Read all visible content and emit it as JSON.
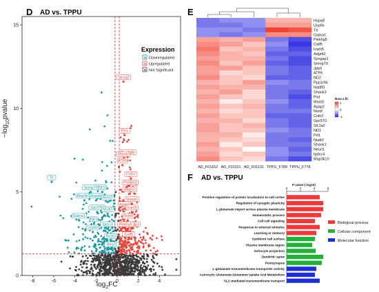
{
  "chart_data": [
    {
      "panel": "D",
      "title": "AD vs. TPPU",
      "type": "scatter",
      "xlabel": "log2FC",
      "xlabel_parts": [
        "log",
        "2",
        "FC"
      ],
      "ylabel": "−log10pvalue",
      "ylabel_parts": [
        "−log",
        "10",
        "pvalue"
      ],
      "xlim": [
        -9,
        6
      ],
      "ylim": [
        0,
        15.5
      ],
      "xticks": [
        -8,
        -6,
        -4,
        -2,
        0,
        2,
        4
      ],
      "yticks": [
        0,
        5,
        10,
        15
      ],
      "thresholds": {
        "log2fc": [
          -0.2,
          0.2
        ],
        "neg_log10_p": 1.3
      },
      "legend": {
        "title": "Expression",
        "entries": [
          {
            "label": "Downregulated",
            "color": "#1f9aa0"
          },
          {
            "label": "Upregulated",
            "color": "#e8463c"
          },
          {
            "label": "Not Significant",
            "color": "#3a3a3a"
          }
        ]
      },
      "labeled_genes": {
        "up": [
          {
            "name": "Slc1a2",
            "x": 0.6,
            "y": 11.6
          },
          {
            "name": "Prt1",
            "x": 0.7,
            "y": 8.4
          },
          {
            "name": "Ppp1r9b",
            "x": 1.0,
            "y": 7.1
          },
          {
            "name": "Shank3",
            "x": 0.6,
            "y": 7.0
          },
          {
            "name": "ATP6",
            "x": 0.5,
            "y": 6.6
          },
          {
            "name": "Jph3",
            "x": 1.5,
            "y": 5.3
          },
          {
            "name": "Cnih2",
            "x": 1.3,
            "y": 5.8
          },
          {
            "name": "Adgrb2",
            "x": 1.2,
            "y": 4.9
          },
          {
            "name": "Psd",
            "x": 0.9,
            "y": 5.3
          },
          {
            "name": "Shank1",
            "x": 1.4,
            "y": 4.3
          },
          {
            "name": "Agap2",
            "x": 0.7,
            "y": 4.0
          },
          {
            "name": "Icam5",
            "x": 1.4,
            "y": 3.8
          },
          {
            "name": "Nsmf",
            "x": 1.0,
            "y": 3.3
          },
          {
            "name": "Syngap1",
            "x": 1.4,
            "y": 2.8
          },
          {
            "name": "Plekhg5",
            "x": 0.8,
            "y": 2.8
          },
          {
            "name": "Celf5",
            "x": 1.1,
            "y": 2.2
          }
        ],
        "down": [
          {
            "name": "Ttr",
            "x": -6.2,
            "y": 5.6
          },
          {
            "name": "Snrnp70",
            "x": -2.5,
            "y": 5.0
          },
          {
            "name": "ND2",
            "x": -1.4,
            "y": 5.0
          },
          {
            "name": "Map3k10",
            "x": -3.1,
            "y": 4.5
          },
          {
            "name": "Hspa8",
            "x": -2.0,
            "y": 4.5
          },
          {
            "name": "Mast3",
            "x": -0.9,
            "y": 4.4
          },
          {
            "name": "Gpr37l1",
            "x": -1.9,
            "y": 3.8
          },
          {
            "name": "Nudt3",
            "x": -0.9,
            "y": 3.7
          },
          {
            "name": "Gabra1",
            "x": -3.6,
            "y": 3.3
          },
          {
            "name": "ND1",
            "x": -2.2,
            "y": 3.1
          },
          {
            "name": "Igdcc4",
            "x": -0.9,
            "y": 2.8
          },
          {
            "name": "Usp9x",
            "x": -2.3,
            "y": 2.6
          },
          {
            "name": "Nudt3",
            "x": -0.6,
            "y": 2.1
          },
          {
            "name": "Neurl1",
            "x": -0.5,
            "y": 1.6
          }
        ]
      }
    },
    {
      "panel": "E",
      "type": "heatmap",
      "columns": [
        "AD_F01152",
        "AD_F01151",
        "AD_F01131",
        "TPPU_F789",
        "TPPU_F778"
      ],
      "rows": [
        "Hspa8",
        "Usp9x",
        "Ttr",
        "Gabra1",
        "Plekhg5",
        "Celf5",
        "Icam5",
        "Adgrb2",
        "Syngap1",
        "Snrnp70",
        "Jph3",
        "ATP6",
        "ND2",
        "Ppp1r9b",
        "Nat8f3",
        "Shank3",
        "Psd",
        "Mast3",
        "Agap2",
        "Nsmf",
        "Cnih2",
        "Gpr37l1",
        "Slc1a2",
        "ND1",
        "Prt1",
        "Nudt3",
        "Shank1",
        "Neurl1",
        "Igdcc4",
        "Map3k10"
      ],
      "values": [
        [
          -0.6,
          -0.5,
          -0.5,
          0.4,
          0.4
        ],
        [
          -0.6,
          -0.6,
          -0.5,
          0.5,
          0.5
        ],
        [
          -0.5,
          -0.5,
          -0.6,
          1.0,
          0.9
        ],
        [
          -0.5,
          -0.6,
          -0.5,
          0.6,
          0.6
        ],
        [
          0.5,
          0.4,
          0.5,
          -0.6,
          -0.8
        ],
        [
          0.6,
          0.5,
          0.3,
          -0.5,
          -0.9
        ],
        [
          0.7,
          0.3,
          0.4,
          -0.6,
          -0.8
        ],
        [
          0.6,
          0.4,
          0.3,
          -0.7,
          -0.7
        ],
        [
          0.5,
          0.4,
          0.4,
          -0.6,
          -0.8
        ],
        [
          0.6,
          0.3,
          0.5,
          -0.7,
          -0.8
        ],
        [
          0.5,
          0.5,
          0.3,
          -0.6,
          -0.7
        ],
        [
          0.5,
          0.2,
          0.3,
          -0.6,
          -0.7
        ],
        [
          0.6,
          0.3,
          0.2,
          -0.7,
          -0.7
        ],
        [
          0.4,
          0.3,
          0.5,
          -0.5,
          -0.6
        ],
        [
          0.5,
          0.4,
          0.4,
          -0.6,
          -0.6
        ],
        [
          0.4,
          0.5,
          0.2,
          -0.6,
          -0.7
        ],
        [
          0.5,
          0.3,
          0.2,
          -0.6,
          -0.8
        ],
        [
          0.4,
          0.1,
          0.3,
          -0.5,
          -0.7
        ],
        [
          0.5,
          0.3,
          0.4,
          -0.6,
          -0.7
        ],
        [
          0.4,
          0.2,
          0.3,
          -0.6,
          -0.6
        ],
        [
          0.5,
          0.3,
          0.3,
          -0.7,
          -0.7
        ],
        [
          0.4,
          0.4,
          0.2,
          -0.6,
          -0.7
        ],
        [
          0.5,
          0.3,
          0.4,
          -0.6,
          -0.7
        ],
        [
          0.5,
          0.3,
          0.3,
          -0.5,
          -0.6
        ],
        [
          0.4,
          0.4,
          0.1,
          -0.6,
          -0.6
        ],
        [
          0.4,
          0.3,
          0.2,
          -0.6,
          -0.7
        ],
        [
          0.5,
          0.1,
          0.3,
          -0.6,
          -0.6
        ],
        [
          0.4,
          0.3,
          0.0,
          -0.5,
          -0.7
        ],
        [
          0.5,
          0.2,
          0.3,
          -0.5,
          -0.6
        ],
        [
          0.6,
          0.3,
          0.2,
          -0.6,
          -0.8
        ]
      ],
      "legend": {
        "title": "Row z.fit",
        "ticks": [
          "1",
          "0",
          "-1"
        ],
        "range": [
          -1,
          1
        ]
      },
      "colors": {
        "high": "#f0402e",
        "mid": "#ffffff",
        "low": "#2020e0"
      }
    },
    {
      "panel": "F",
      "title": "AD vs. TPPU",
      "type": "bar",
      "orientation": "horizontal",
      "xlabel": "P value (-log10)",
      "xlim": [
        0,
        6
      ],
      "xticks": [
        0,
        2,
        4,
        6
      ],
      "categories": [
        "Positive regulation of protein localization to cell cortex",
        "Regulation of synaptic plasticity",
        "L-glutamate import across plasma membrane",
        "Homeostatic process",
        "Cell-cell signaling",
        "Response to external stimulus",
        "Learning or memory",
        "Symbiont cell surface",
        "Plasma membrane region",
        "Astrocyte projection",
        "Dendritic spine",
        "Postsynapse",
        "L-glutamate transmembrane transporter activity",
        "Astrocytic Glutamate-Glutamine Uptake And Metabolism",
        "SLC-mediated transmembrane transport"
      ],
      "values": [
        4.8,
        5.3,
        5.3,
        5.0,
        4.1,
        4.8,
        4.3,
        4.1,
        3.7,
        4.2,
        5.3,
        5.1,
        4.3,
        4.1,
        4.8
      ],
      "groups": [
        "BP",
        "BP",
        "BP",
        "BP",
        "BP",
        "BP",
        "BP",
        "CC",
        "CC",
        "CC",
        "CC",
        "CC",
        "MF",
        "MF",
        "MF"
      ],
      "legend": [
        {
          "label": "Biological process",
          "color": "#ee3a3a"
        },
        {
          "label": "Cellular component",
          "color": "#22b03a"
        },
        {
          "label": "Molecular function",
          "color": "#1f2fd6"
        }
      ]
    }
  ]
}
